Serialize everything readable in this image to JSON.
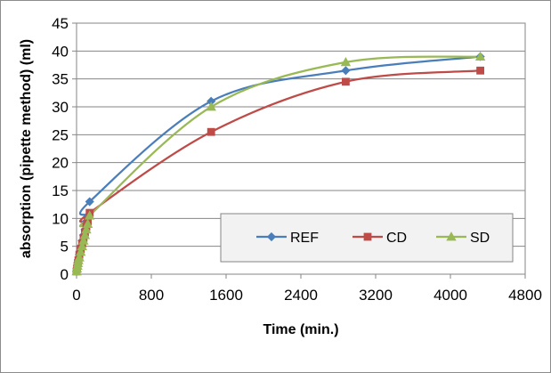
{
  "chart_data": {
    "type": "line",
    "title": "",
    "xlabel": "Time (min.)",
    "ylabel": "absorption (pipette method) (ml)",
    "xlim": [
      0,
      4800
    ],
    "ylim": [
      0,
      45
    ],
    "xticks": [
      0,
      800,
      1600,
      2400,
      3200,
      4000,
      4800
    ],
    "yticks": [
      0,
      5,
      10,
      15,
      20,
      25,
      30,
      35,
      40,
      45
    ],
    "grid": "horizontal",
    "legend_position": "lower-right",
    "series": [
      {
        "name": "REF",
        "color": "#4a7ebb",
        "marker": "diamond",
        "x": [
          1,
          5,
          10,
          15,
          20,
          30,
          45,
          60,
          75,
          90,
          105,
          120,
          140,
          1440,
          2880,
          4320
        ],
        "y": [
          0.5,
          1,
          1.5,
          2,
          2.5,
          3.5,
          5,
          6,
          7,
          8,
          9.5,
          10.5,
          13,
          31,
          36.5,
          39
        ]
      },
      {
        "name": "CD",
        "color": "#be4b48",
        "marker": "square",
        "x": [
          1,
          5,
          10,
          15,
          20,
          30,
          45,
          60,
          75,
          90,
          105,
          120,
          140,
          1440,
          2880,
          4320
        ],
        "y": [
          0.5,
          1,
          1.5,
          2,
          2.5,
          3.5,
          4.5,
          5.5,
          6.5,
          7.5,
          8.5,
          9.5,
          11,
          25.5,
          34.5,
          36.5
        ]
      },
      {
        "name": "SD",
        "color": "#98b954",
        "marker": "triangle",
        "x": [
          1,
          5,
          10,
          15,
          20,
          30,
          45,
          60,
          75,
          90,
          105,
          120,
          140,
          1440,
          2880,
          4320
        ],
        "y": [
          0.5,
          1,
          1.5,
          2,
          2.5,
          3,
          4,
          5,
          6,
          7,
          8,
          9,
          10.5,
          30,
          38,
          39
        ]
      }
    ]
  }
}
